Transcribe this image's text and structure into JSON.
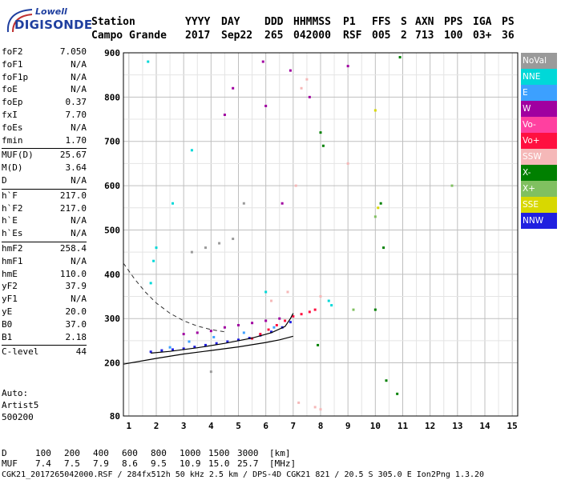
{
  "logo": {
    "line1": "Lowell",
    "line2": "DIGISONDE"
  },
  "header": {
    "labels": [
      "Station",
      "YYYY",
      "DAY",
      "DDD",
      "HHMMSS",
      "P1",
      "FFS",
      "S",
      "AXN",
      "PPS",
      "IGA",
      "PS"
    ],
    "values": [
      "Campo Grande",
      "2017",
      "Sep22",
      "265",
      "042000",
      "RSF",
      "005",
      "2",
      "713",
      "100",
      "03+",
      "36"
    ]
  },
  "params": [
    {
      "group": [
        {
          "name": "foF2",
          "value": "7.050"
        },
        {
          "name": "foF1",
          "value": "N/A"
        },
        {
          "name": "foF1p",
          "value": "N/A"
        },
        {
          "name": "foE",
          "value": "N/A"
        },
        {
          "name": "foEp",
          "value": "0.37"
        },
        {
          "name": "fxI",
          "value": "7.70"
        },
        {
          "name": "foEs",
          "value": "N/A"
        },
        {
          "name": "fmin",
          "value": "1.70"
        }
      ]
    },
    {
      "group": [
        {
          "name": "MUF(D)",
          "value": "25.67"
        },
        {
          "name": "M(D)",
          "value": "3.64"
        },
        {
          "name": "D",
          "value": "N/A"
        }
      ]
    },
    {
      "group": [
        {
          "name": "h`F",
          "value": "217.0"
        },
        {
          "name": "h`F2",
          "value": "217.0"
        },
        {
          "name": "h`E",
          "value": "N/A"
        },
        {
          "name": "h`Es",
          "value": "N/A"
        }
      ]
    },
    {
      "group": [
        {
          "name": "hmF2",
          "value": "258.4"
        },
        {
          "name": "hmF1",
          "value": "N/A"
        },
        {
          "name": "hmE",
          "value": "110.0"
        },
        {
          "name": "yF2",
          "value": "37.9"
        },
        {
          "name": "yF1",
          "value": "N/A"
        },
        {
          "name": "yE",
          "value": "20.0"
        },
        {
          "name": "B0",
          "value": "37.0"
        },
        {
          "name": "B1",
          "value": "2.18"
        }
      ]
    },
    {
      "group": [
        {
          "name": "C-level",
          "value": "44"
        }
      ]
    }
  ],
  "auto": [
    "Auto:",
    "Artist5",
    "500200"
  ],
  "legend": [
    {
      "label": "NoVal",
      "color": "#9a9a9a"
    },
    {
      "label": "NNE",
      "color": "#00d8d8"
    },
    {
      "label": "E",
      "color": "#3ca0ff"
    },
    {
      "label": "W",
      "color": "#a000a0"
    },
    {
      "label": "Vo-",
      "color": "#ff40a0"
    },
    {
      "label": "Vo+",
      "color": "#ff1040"
    },
    {
      "label": "SSW",
      "color": "#f5b8b8"
    },
    {
      "label": "X-",
      "color": "#008000"
    },
    {
      "label": "X+",
      "color": "#80c060"
    },
    {
      "label": "SSE",
      "color": "#d8d800"
    },
    {
      "label": "NNW",
      "color": "#2020e0"
    }
  ],
  "chart_data": {
    "type": "scatter",
    "title": "",
    "xlabel": "",
    "ylabel": "",
    "xlim": [
      0.8,
      15.2
    ],
    "ylim": [
      80,
      900
    ],
    "xticks": [
      1,
      2,
      3,
      4,
      5,
      6,
      7,
      8,
      9,
      10,
      11,
      12,
      13,
      14,
      15
    ],
    "yticks": [
      80,
      200,
      300,
      400,
      500,
      600,
      700,
      800,
      900
    ],
    "grid": true,
    "legend_position": "right",
    "series": [
      {
        "color": "#2020e0",
        "points": [
          [
            1.8,
            225
          ],
          [
            2.2,
            228
          ],
          [
            2.6,
            230
          ],
          [
            3.0,
            232
          ],
          [
            3.4,
            236
          ],
          [
            3.8,
            240
          ],
          [
            4.2,
            244
          ],
          [
            4.6,
            248
          ],
          [
            5.0,
            252
          ],
          [
            5.4,
            256
          ],
          [
            5.8,
            262
          ],
          [
            6.2,
            270
          ],
          [
            6.6,
            280
          ],
          [
            6.9,
            292
          ]
        ]
      },
      {
        "color": "#a000a0",
        "points": [
          [
            3.0,
            265
          ],
          [
            3.5,
            268
          ],
          [
            4.0,
            272
          ],
          [
            4.5,
            280
          ],
          [
            5.0,
            285
          ],
          [
            5.5,
            290
          ],
          [
            6.0,
            295
          ],
          [
            6.5,
            300
          ],
          [
            4.5,
            760
          ],
          [
            4.8,
            820
          ],
          [
            5.9,
            880
          ],
          [
            6.0,
            780
          ],
          [
            6.6,
            560
          ],
          [
            6.9,
            860
          ],
          [
            7.6,
            800
          ],
          [
            9.0,
            870
          ]
        ]
      },
      {
        "color": "#ff1040",
        "points": [
          [
            5.5,
            255
          ],
          [
            5.8,
            265
          ],
          [
            6.1,
            275
          ],
          [
            6.4,
            285
          ],
          [
            6.7,
            295
          ],
          [
            7.0,
            305
          ],
          [
            7.3,
            310
          ],
          [
            7.6,
            315
          ],
          [
            7.8,
            320
          ]
        ]
      },
      {
        "color": "#f5b8b8",
        "points": [
          [
            6.2,
            340
          ],
          [
            6.8,
            360
          ],
          [
            7.1,
            600
          ],
          [
            7.3,
            820
          ],
          [
            7.5,
            840
          ],
          [
            7.2,
            110
          ],
          [
            7.8,
            100
          ],
          [
            8.0,
            95
          ],
          [
            9.0,
            650
          ],
          [
            8.0,
            350
          ]
        ]
      },
      {
        "color": "#008000",
        "points": [
          [
            7.9,
            240
          ],
          [
            8.0,
            720
          ],
          [
            8.1,
            690
          ],
          [
            10.2,
            560
          ],
          [
            10.3,
            460
          ],
          [
            10.4,
            160
          ],
          [
            10.8,
            130
          ],
          [
            10.9,
            890
          ],
          [
            10.0,
            320
          ]
        ]
      },
      {
        "color": "#00d8d8",
        "points": [
          [
            1.8,
            380
          ],
          [
            1.9,
            430
          ],
          [
            1.7,
            880
          ],
          [
            2.0,
            460
          ],
          [
            2.6,
            560
          ],
          [
            3.3,
            680
          ],
          [
            6.0,
            360
          ],
          [
            8.3,
            340
          ],
          [
            8.4,
            330
          ]
        ]
      },
      {
        "color": "#3ca0ff",
        "points": [
          [
            2.5,
            235
          ],
          [
            3.2,
            248
          ],
          [
            4.1,
            258
          ],
          [
            5.2,
            268
          ],
          [
            6.3,
            280
          ]
        ]
      },
      {
        "color": "#d8d800",
        "points": [
          [
            10.0,
            770
          ],
          [
            10.1,
            550
          ]
        ]
      },
      {
        "color": "#80c060",
        "points": [
          [
            9.2,
            320
          ],
          [
            10.0,
            530
          ],
          [
            12.8,
            600
          ]
        ]
      },
      {
        "color": "#9a9a9a",
        "points": [
          [
            3.3,
            450
          ],
          [
            3.8,
            460
          ],
          [
            4.3,
            470
          ],
          [
            4.8,
            480
          ],
          [
            5.2,
            560
          ],
          [
            4.0,
            180
          ]
        ]
      }
    ],
    "curves": {
      "dashed": [
        [
          0.8,
          425
        ],
        [
          1.2,
          390
        ],
        [
          1.6,
          360
        ],
        [
          2.0,
          335
        ],
        [
          2.5,
          312
        ],
        [
          3.0,
          295
        ],
        [
          3.5,
          283
        ],
        [
          4.0,
          275
        ],
        [
          4.5,
          270
        ]
      ],
      "profile": [
        [
          0.8,
          197
        ],
        [
          2,
          210
        ],
        [
          3,
          220
        ],
        [
          4,
          228
        ],
        [
          5,
          236
        ],
        [
          6,
          246
        ],
        [
          6.5,
          252
        ],
        [
          7.0,
          260
        ]
      ],
      "trace": [
        [
          1.8,
          222
        ],
        [
          2.5,
          226
        ],
        [
          3.5,
          234
        ],
        [
          4.5,
          244
        ],
        [
          5.5,
          256
        ],
        [
          6.2,
          268
        ],
        [
          6.7,
          282
        ],
        [
          6.9,
          300
        ],
        [
          7.0,
          312
        ]
      ]
    }
  },
  "footer": {
    "row1_label": "D",
    "row1_values": [
      "100",
      "200",
      "400",
      "600",
      "800",
      "1000",
      "1500",
      "3000",
      "[km]"
    ],
    "row2_label": "MUF",
    "row2_values": [
      "7.4",
      "7.5",
      "7.9",
      "8.6",
      "9.5",
      "10.9",
      "15.0",
      "25.7",
      "[MHz]"
    ],
    "info": "CGK21_2017265042000.RSF / 284fx512h 50 kHz 2.5 km / DPS-4D CGK21 821 / 20.5 S 305.0 E Ion2Png 1.3.20"
  }
}
